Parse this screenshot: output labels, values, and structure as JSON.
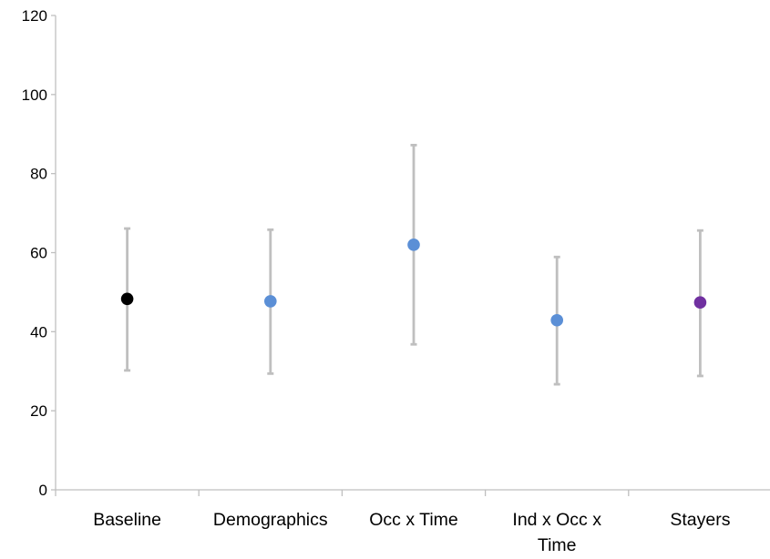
{
  "chart_data": {
    "type": "scatter",
    "title": "",
    "xlabel": "",
    "ylabel": "",
    "ylim": [
      0,
      120
    ],
    "y_ticks": [
      0,
      20,
      40,
      60,
      80,
      100,
      120
    ],
    "grid": false,
    "legend": "none",
    "categories": [
      [
        "Baseline"
      ],
      [
        "Demographics"
      ],
      [
        "Occ x Time"
      ],
      [
        "Ind x Occ x",
        "Time"
      ],
      [
        "Stayers"
      ]
    ],
    "points": [
      {
        "value": 48.3,
        "lower": 30.2,
        "upper": 66.1,
        "color": "#000000"
      },
      {
        "value": 47.7,
        "lower": 29.4,
        "upper": 65.8,
        "color": "#5b8fd6"
      },
      {
        "value": 62.0,
        "lower": 36.8,
        "upper": 87.2,
        "color": "#5b8fd6"
      },
      {
        "value": 42.9,
        "lower": 26.7,
        "upper": 58.9,
        "color": "#5b8fd6"
      },
      {
        "value": 47.4,
        "lower": 28.8,
        "upper": 65.6,
        "color": "#7030a0"
      }
    ],
    "error_bar_color": "#bfbfbf",
    "axis_color": "#bfbfbf"
  }
}
